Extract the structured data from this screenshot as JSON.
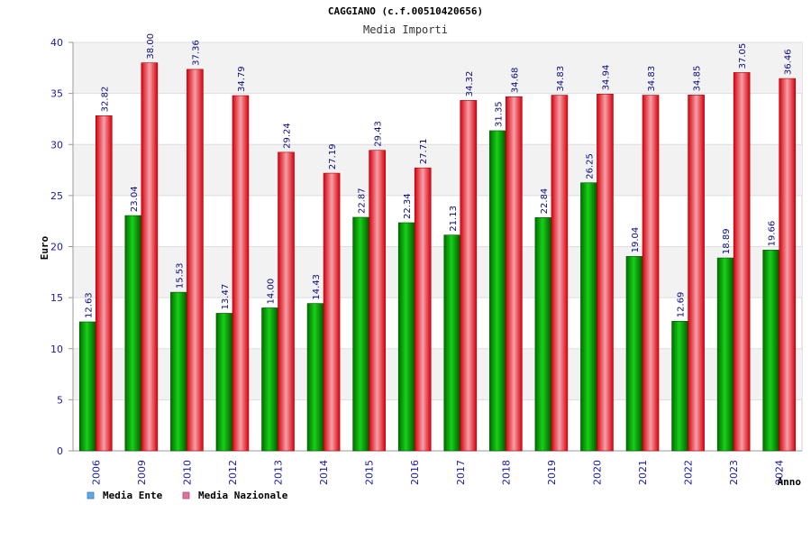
{
  "chart_data": {
    "type": "bar",
    "title": "CAGGIANO (c.f.00510420656)",
    "subtitle": "Media Importi",
    "xlabel": "Anno",
    "ylabel": "Euro",
    "ylim": [
      0,
      40
    ],
    "yticks": [
      "0",
      "5",
      "10",
      "15",
      "20",
      "25",
      "30",
      "35",
      "40"
    ],
    "grid": true,
    "legend_position": "bottom-left",
    "categories": [
      "2006",
      "2009",
      "2010",
      "2012",
      "2013",
      "2014",
      "2015",
      "2016",
      "2017",
      "2018",
      "2019",
      "2020",
      "2021",
      "2022",
      "2023",
      "2024"
    ],
    "series": [
      {
        "name": "Media Ente",
        "color": "#00b000",
        "legend_color": "#5fa8e8",
        "values": [
          12.63,
          23.04,
          15.53,
          13.47,
          14.0,
          14.43,
          22.87,
          22.34,
          21.13,
          31.35,
          22.84,
          26.25,
          19.04,
          12.69,
          18.89,
          19.66
        ],
        "labels": [
          "12.63",
          "23.04",
          "15.53",
          "13.47",
          "14.00",
          "14.43",
          "22.87",
          "22.34",
          "21.13",
          "31.35",
          "22.84",
          "26.25",
          "19.04",
          "12.69",
          "18.89",
          "19.66"
        ]
      },
      {
        "name": "Media Nazionale",
        "color": "#e8101a",
        "legend_color": "#e070a0",
        "values": [
          32.82,
          38.0,
          37.36,
          34.79,
          29.24,
          27.19,
          29.43,
          27.71,
          34.32,
          34.68,
          34.83,
          34.94,
          34.83,
          34.85,
          37.05,
          36.46
        ],
        "labels": [
          "32.82",
          "38.00",
          "37.36",
          "34.79",
          "29.24",
          "27.19",
          "29.43",
          "27.71",
          "34.32",
          "34.68",
          "34.83",
          "34.94",
          "34.83",
          "34.85",
          "37.05",
          "36.46"
        ]
      }
    ]
  }
}
